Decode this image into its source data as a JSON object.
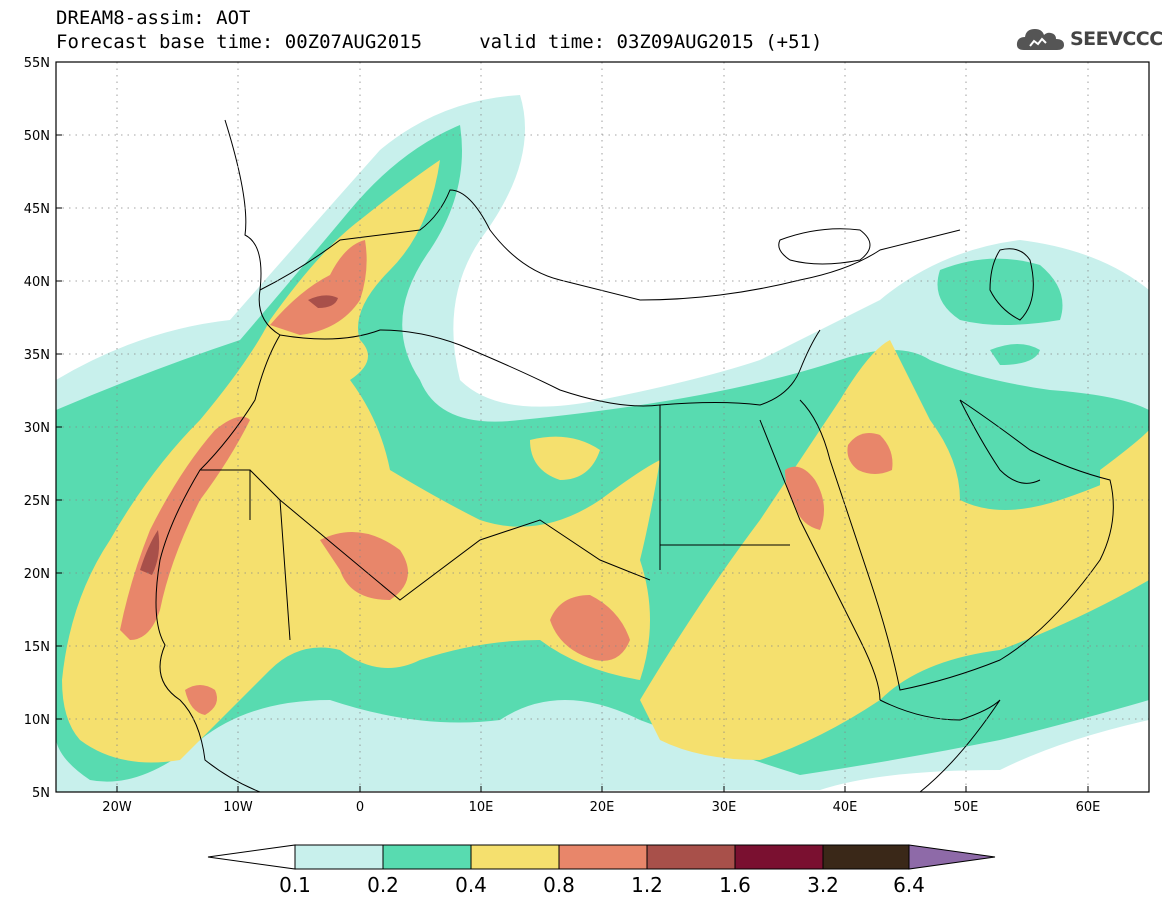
{
  "header": {
    "line1": "DREAM8-assim: AOT",
    "line2": "Forecast base time: 00Z07AUG2015     valid time: 03Z09AUG2015 (+51)"
  },
  "logo": {
    "icon": "cloud-icon",
    "text": "SEEVCCC"
  },
  "axes": {
    "lat_labels": [
      "55N",
      "50N",
      "45N",
      "40N",
      "35N",
      "30N",
      "25N",
      "20N",
      "15N",
      "10N",
      "5N"
    ],
    "lon_labels": [
      "20W",
      "10W",
      "0",
      "10E",
      "20E",
      "30E",
      "40E",
      "50E",
      "60E"
    ]
  },
  "colorbar": {
    "labels": [
      "0.1",
      "0.2",
      "0.4",
      "0.8",
      "1.2",
      "1.6",
      "3.2",
      "6.4"
    ],
    "colors": [
      "#c8f0ec",
      "#58dbb0",
      "#f5e06e",
      "#e8866a",
      "#a8504a",
      "#7a1030",
      "#3a2818",
      "#8e6aa8"
    ]
  },
  "colors": {
    "c01": "#c8f0ec",
    "c02": "#58dbb0",
    "c04": "#f5e06e",
    "c08": "#e8866a",
    "c12": "#a8504a"
  }
}
